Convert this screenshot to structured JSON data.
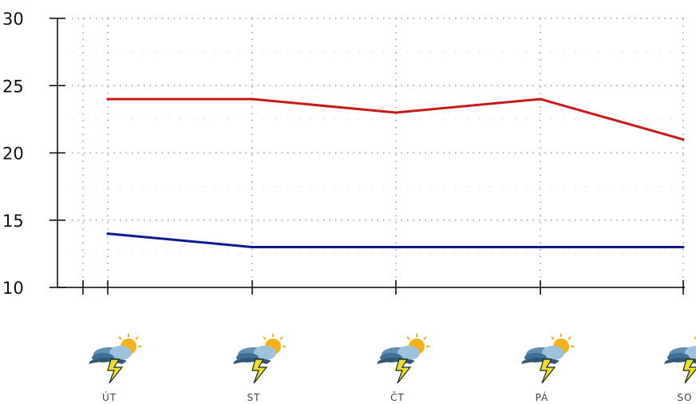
{
  "chart_data": {
    "type": "line",
    "categories": [
      "ÚT",
      "ST",
      "ČT",
      "PÁ",
      "SO"
    ],
    "series": [
      {
        "values": [
          24,
          24,
          23,
          24,
          21
        ],
        "color": "#c41a1a"
      },
      {
        "values": [
          14,
          13,
          13,
          13,
          13
        ],
        "color": "#101a8c"
      }
    ],
    "y_ticks": [
      "10",
      "15",
      "20",
      "25",
      "30"
    ],
    "ylim": [
      10,
      30
    ],
    "grid": "dotted",
    "weather_icon": "sun-cloud-lightning-icon"
  }
}
